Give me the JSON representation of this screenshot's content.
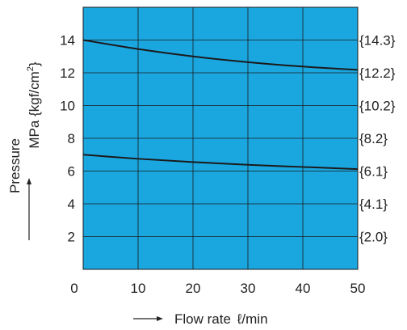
{
  "chart_data": {
    "type": "line",
    "xlabel": "Flow rate",
    "xunit": "ℓ/min",
    "ylabel": "Pressure",
    "yunit_prefix": "MPa {kgf/cm",
    "yunit_sup": "2",
    "yunit_suffix": "}",
    "xlim": [
      0,
      50
    ],
    "ylim": [
      0,
      16
    ],
    "x_ticks": [
      10,
      20,
      30,
      40,
      50
    ],
    "x_origin_label": "0",
    "y_ticks": [
      2,
      4,
      6,
      8,
      10,
      12,
      14
    ],
    "secondary_y_ticks": [
      {
        "value": 2,
        "label": "{2.0}"
      },
      {
        "value": 4,
        "label": "{4.1}"
      },
      {
        "value": 6,
        "label": "{6.1}"
      },
      {
        "value": 8,
        "label": "{8.2}"
      },
      {
        "value": 10,
        "label": "{10.2}"
      },
      {
        "value": 12,
        "label": "{12.2}"
      },
      {
        "value": 14,
        "label": "{14.3}"
      }
    ],
    "grid": true,
    "background_color": "#1AA7E0",
    "line_color": "#1A1A1A",
    "series": [
      {
        "x": [
          0,
          10,
          20,
          30,
          40,
          50
        ],
        "values": [
          14.0,
          13.45,
          13.0,
          12.65,
          12.38,
          12.18
        ]
      },
      {
        "x": [
          0,
          10,
          20,
          30,
          40,
          50
        ],
        "values": [
          7.0,
          6.75,
          6.55,
          6.38,
          6.25,
          6.12
        ]
      }
    ]
  }
}
